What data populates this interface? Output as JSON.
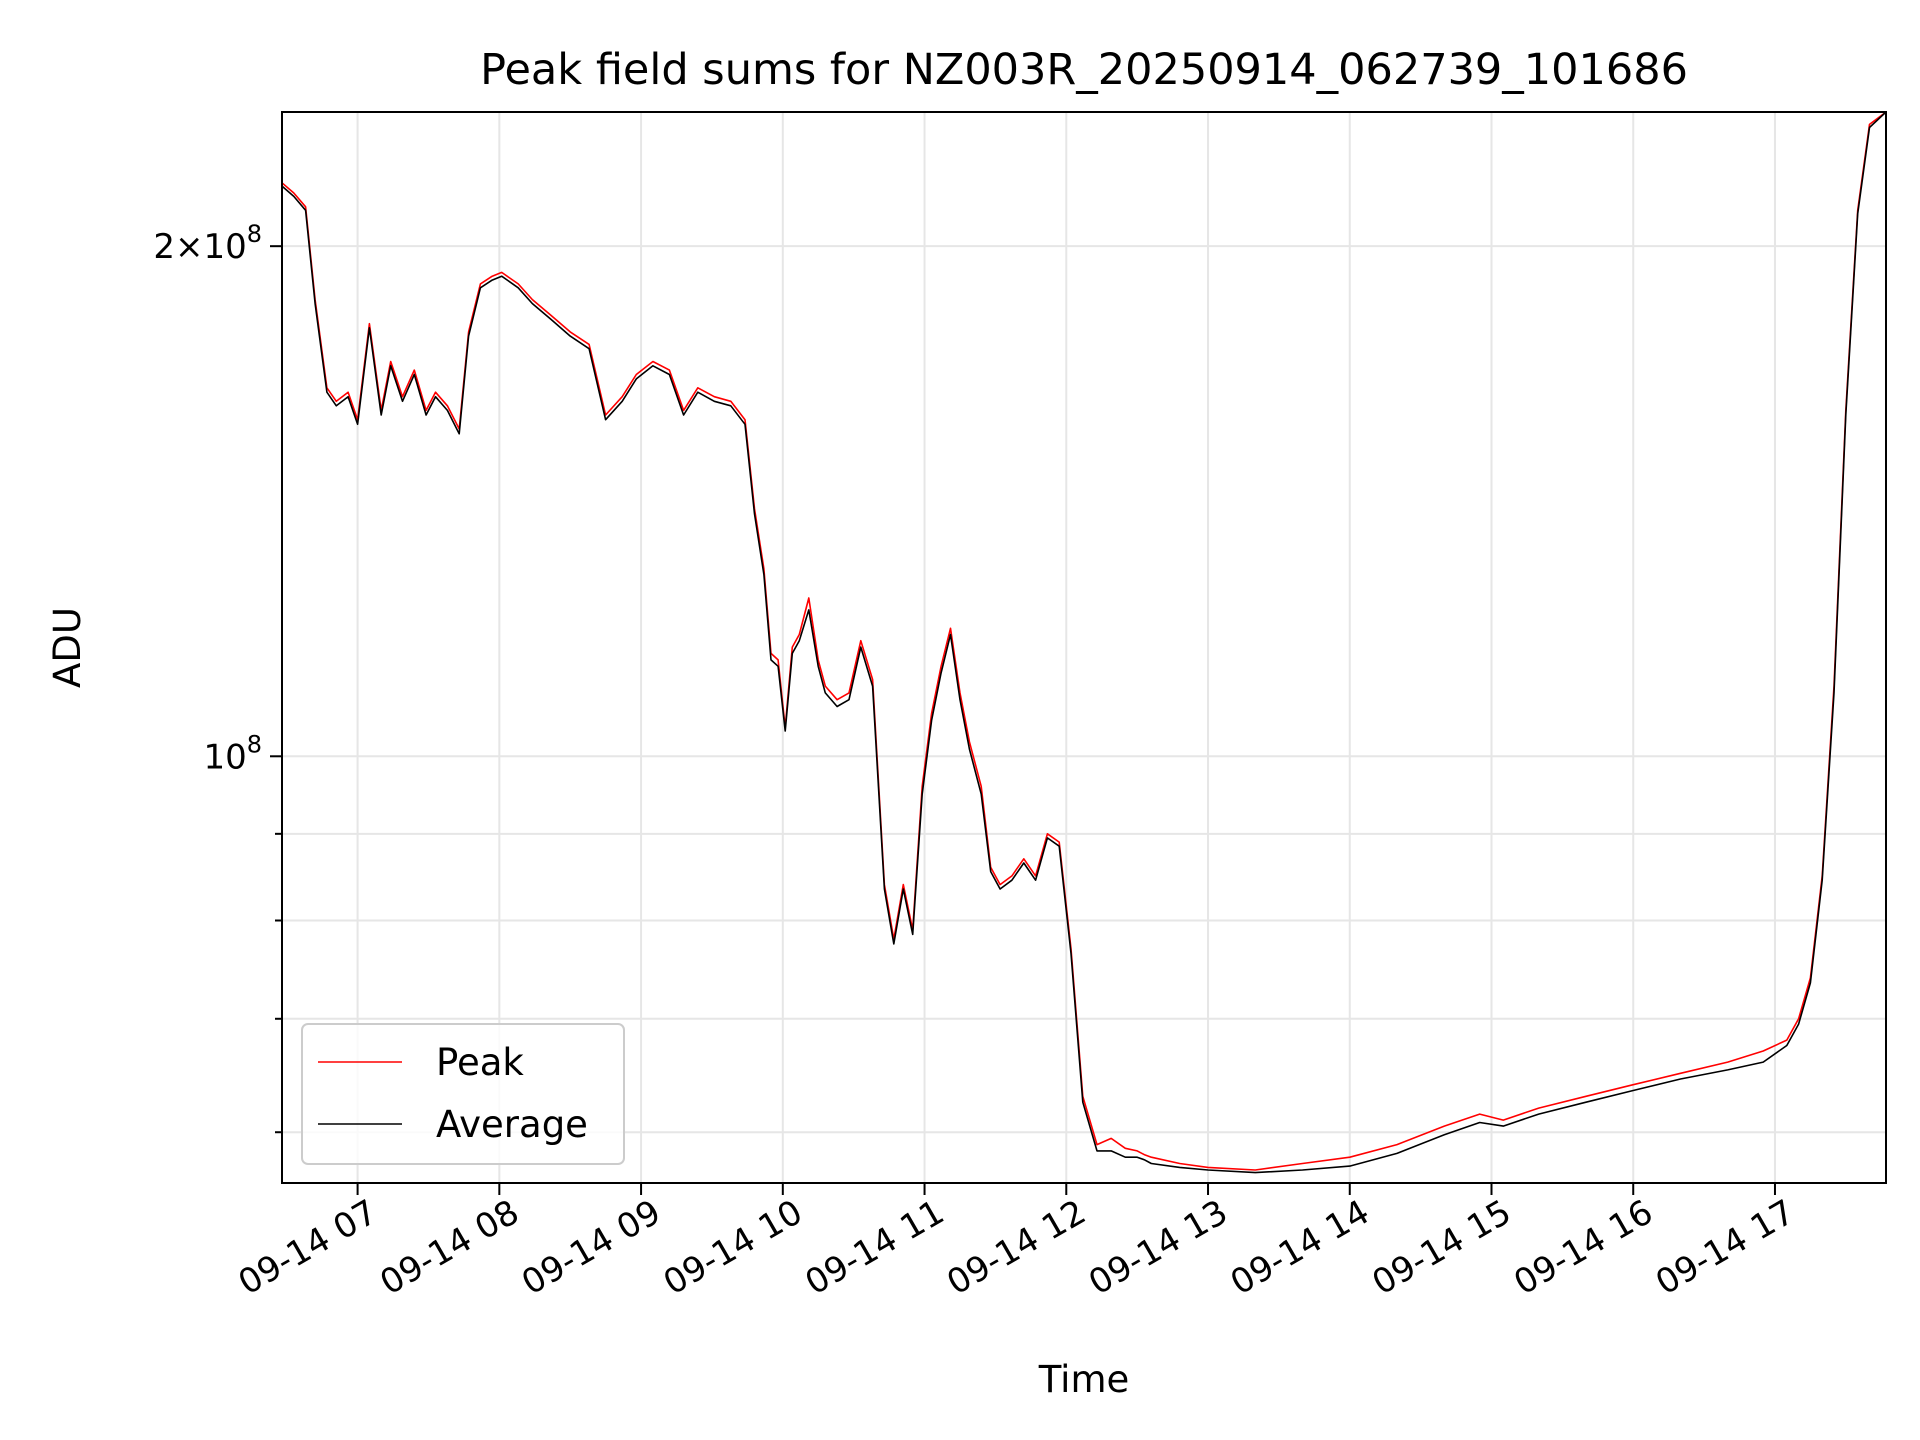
{
  "chart_data": {
    "type": "line",
    "title": "Peak field sums for NZ003R_20250914_062739_101686",
    "xlabel": "Time",
    "ylabel": "ADU",
    "y_scale": "log",
    "ylim": [
      56000000,
      240000000
    ],
    "xlim": [
      "2025-09-14 06:28",
      "2025-09-14 17:47"
    ],
    "x_tick_labels": [
      "09-14 07",
      "09-14 08",
      "09-14 09",
      "09-14 10",
      "09-14 11",
      "09-14 12",
      "09-14 13",
      "09-14 14",
      "09-14 15",
      "09-14 16",
      "09-14 17"
    ],
    "x_ticks": [
      "2025-09-14 07:00",
      "2025-09-14 08:00",
      "2025-09-14 09:00",
      "2025-09-14 10:00",
      "2025-09-14 11:00",
      "2025-09-14 12:00",
      "2025-09-14 13:00",
      "2025-09-14 14:00",
      "2025-09-14 15:00",
      "2025-09-14 16:00",
      "2025-09-14 17:00"
    ],
    "y_major_ticks": [
      {
        "value": 200000000,
        "mantissa": "2",
        "exponent": "8"
      },
      {
        "value": 100000000,
        "mantissa": "",
        "exponent": "8"
      }
    ],
    "y_minor_ticks": [
      60000000,
      70000000,
      80000000,
      90000000
    ],
    "grid": true,
    "legend_position": "lower-left",
    "series": [
      {
        "name": "Peak",
        "color": "#ff0000",
        "x": [
          "2025-09-14 06:28",
          "2025-09-14 06:33",
          "2025-09-14 06:38",
          "2025-09-14 06:42",
          "2025-09-14 06:47",
          "2025-09-14 06:51",
          "2025-09-14 06:56",
          "2025-09-14 07:00",
          "2025-09-14 07:05",
          "2025-09-14 07:10",
          "2025-09-14 07:14",
          "2025-09-14 07:19",
          "2025-09-14 07:24",
          "2025-09-14 07:29",
          "2025-09-14 07:33",
          "2025-09-14 07:38",
          "2025-09-14 07:43",
          "2025-09-14 07:47",
          "2025-09-14 07:52",
          "2025-09-14 07:57",
          "2025-09-14 08:01",
          "2025-09-14 08:08",
          "2025-09-14 08:14",
          "2025-09-14 08:22",
          "2025-09-14 08:30",
          "2025-09-14 08:38",
          "2025-09-14 08:45",
          "2025-09-14 08:52",
          "2025-09-14 08:58",
          "2025-09-14 09:05",
          "2025-09-14 09:12",
          "2025-09-14 09:18",
          "2025-09-14 09:24",
          "2025-09-14 09:31",
          "2025-09-14 09:38",
          "2025-09-14 09:44",
          "2025-09-14 09:48",
          "2025-09-14 09:52",
          "2025-09-14 09:55",
          "2025-09-14 09:58",
          "2025-09-14 10:01",
          "2025-09-14 10:04",
          "2025-09-14 10:07",
          "2025-09-14 10:11",
          "2025-09-14 10:15",
          "2025-09-14 10:18",
          "2025-09-14 10:23",
          "2025-09-14 10:28",
          "2025-09-14 10:33",
          "2025-09-14 10:38",
          "2025-09-14 10:43",
          "2025-09-14 10:47",
          "2025-09-14 10:51",
          "2025-09-14 10:55",
          "2025-09-14 10:59",
          "2025-09-14 11:03",
          "2025-09-14 11:07",
          "2025-09-14 11:11",
          "2025-09-14 11:15",
          "2025-09-14 11:19",
          "2025-09-14 11:24",
          "2025-09-14 11:28",
          "2025-09-14 11:32",
          "2025-09-14 11:37",
          "2025-09-14 11:42",
          "2025-09-14 11:47",
          "2025-09-14 11:52",
          "2025-09-14 11:57",
          "2025-09-14 12:02",
          "2025-09-14 12:07",
          "2025-09-14 12:13",
          "2025-09-14 12:19",
          "2025-09-14 12:25",
          "2025-09-14 12:30",
          "2025-09-14 12:33",
          "2025-09-14 12:36",
          "2025-09-14 12:48",
          "2025-09-14 13:00",
          "2025-09-14 13:20",
          "2025-09-14 13:40",
          "2025-09-14 14:00",
          "2025-09-14 14:20",
          "2025-09-14 14:40",
          "2025-09-14 14:55",
          "2025-09-14 15:05",
          "2025-09-14 15:20",
          "2025-09-14 15:40",
          "2025-09-14 16:00",
          "2025-09-14 16:20",
          "2025-09-14 16:40",
          "2025-09-14 16:55",
          "2025-09-14 17:05",
          "2025-09-14 17:10",
          "2025-09-14 17:15",
          "2025-09-14 17:20",
          "2025-09-14 17:25",
          "2025-09-14 17:30",
          "2025-09-14 17:35",
          "2025-09-14 17:40",
          "2025-09-14 17:47"
        ],
        "values": [
          218000000,
          215000000,
          211000000,
          186000000,
          165000000,
          162000000,
          164000000,
          158000000,
          180000000,
          160000000,
          171000000,
          163000000,
          169000000,
          160000000,
          164000000,
          161000000,
          156000000,
          178000000,
          190000000,
          192000000,
          193000000,
          190000000,
          186000000,
          182000000,
          178000000,
          175000000,
          159000000,
          163000000,
          168000000,
          171000000,
          169000000,
          160000000,
          165000000,
          163000000,
          162000000,
          158000000,
          140000000,
          129000000,
          115000000,
          114000000,
          104000000,
          116000000,
          118000000,
          124000000,
          114000000,
          110000000,
          108000000,
          109000000,
          117000000,
          111000000,
          84000000,
          78000000,
          84000000,
          79000000,
          96000000,
          106000000,
          113000000,
          119000000,
          109000000,
          102000000,
          96000000,
          86000000,
          84000000,
          85000000,
          87000000,
          85000000,
          90000000,
          89000000,
          77000000,
          63000000,
          59000000,
          59500000,
          58700000,
          58500000,
          58200000,
          58000000,
          57500000,
          57200000,
          57000000,
          57500000,
          58000000,
          59000000,
          60500000,
          61500000,
          61000000,
          62000000,
          63000000,
          64000000,
          65000000,
          66000000,
          67000000,
          68000000,
          70000000,
          74000000,
          85000000,
          110000000,
          160000000,
          210000000,
          236000000,
          240000000
        ]
      },
      {
        "name": "Average",
        "color": "#000000",
        "x": [
          "2025-09-14 06:28",
          "2025-09-14 06:33",
          "2025-09-14 06:38",
          "2025-09-14 06:42",
          "2025-09-14 06:47",
          "2025-09-14 06:51",
          "2025-09-14 06:56",
          "2025-09-14 07:00",
          "2025-09-14 07:05",
          "2025-09-14 07:10",
          "2025-09-14 07:14",
          "2025-09-14 07:19",
          "2025-09-14 07:24",
          "2025-09-14 07:29",
          "2025-09-14 07:33",
          "2025-09-14 07:38",
          "2025-09-14 07:43",
          "2025-09-14 07:47",
          "2025-09-14 07:52",
          "2025-09-14 07:57",
          "2025-09-14 08:01",
          "2025-09-14 08:08",
          "2025-09-14 08:14",
          "2025-09-14 08:22",
          "2025-09-14 08:30",
          "2025-09-14 08:38",
          "2025-09-14 08:45",
          "2025-09-14 08:52",
          "2025-09-14 08:58",
          "2025-09-14 09:05",
          "2025-09-14 09:12",
          "2025-09-14 09:18",
          "2025-09-14 09:24",
          "2025-09-14 09:31",
          "2025-09-14 09:38",
          "2025-09-14 09:44",
          "2025-09-14 09:48",
          "2025-09-14 09:52",
          "2025-09-14 09:55",
          "2025-09-14 09:58",
          "2025-09-14 10:01",
          "2025-09-14 10:04",
          "2025-09-14 10:07",
          "2025-09-14 10:11",
          "2025-09-14 10:15",
          "2025-09-14 10:18",
          "2025-09-14 10:23",
          "2025-09-14 10:28",
          "2025-09-14 10:33",
          "2025-09-14 10:38",
          "2025-09-14 10:43",
          "2025-09-14 10:47",
          "2025-09-14 10:51",
          "2025-09-14 10:55",
          "2025-09-14 10:59",
          "2025-09-14 11:03",
          "2025-09-14 11:07",
          "2025-09-14 11:11",
          "2025-09-14 11:15",
          "2025-09-14 11:19",
          "2025-09-14 11:24",
          "2025-09-14 11:28",
          "2025-09-14 11:32",
          "2025-09-14 11:37",
          "2025-09-14 11:42",
          "2025-09-14 11:47",
          "2025-09-14 11:52",
          "2025-09-14 11:57",
          "2025-09-14 12:02",
          "2025-09-14 12:07",
          "2025-09-14 12:13",
          "2025-09-14 12:19",
          "2025-09-14 12:25",
          "2025-09-14 12:30",
          "2025-09-14 12:33",
          "2025-09-14 12:36",
          "2025-09-14 12:48",
          "2025-09-14 13:00",
          "2025-09-14 13:20",
          "2025-09-14 13:40",
          "2025-09-14 14:00",
          "2025-09-14 14:20",
          "2025-09-14 14:40",
          "2025-09-14 14:55",
          "2025-09-14 15:05",
          "2025-09-14 15:20",
          "2025-09-14 15:40",
          "2025-09-14 16:00",
          "2025-09-14 16:20",
          "2025-09-14 16:40",
          "2025-09-14 16:55",
          "2025-09-14 17:05",
          "2025-09-14 17:10",
          "2025-09-14 17:15",
          "2025-09-14 17:20",
          "2025-09-14 17:25",
          "2025-09-14 17:30",
          "2025-09-14 17:35",
          "2025-09-14 17:40",
          "2025-09-14 17:47"
        ],
        "values": [
          217000000,
          214000000,
          210000000,
          185000000,
          164000000,
          161000000,
          163000000,
          157000000,
          179000000,
          159000000,
          170000000,
          162000000,
          168000000,
          159000000,
          163000000,
          160000000,
          155000000,
          177000000,
          189000000,
          191000000,
          192000000,
          189000000,
          185000000,
          181000000,
          177000000,
          174000000,
          158000000,
          162000000,
          167000000,
          170000000,
          168000000,
          159000000,
          164000000,
          162000000,
          161000000,
          157000000,
          139000000,
          128000000,
          114000000,
          113000000,
          103500000,
          115000000,
          117000000,
          122000000,
          113000000,
          109000000,
          107000000,
          108000000,
          116000000,
          110000000,
          83500000,
          77500000,
          83500000,
          78500000,
          95000000,
          105000000,
          112000000,
          118000000,
          108000000,
          101000000,
          95000000,
          85500000,
          83500000,
          84500000,
          86500000,
          84500000,
          89500000,
          88500000,
          76500000,
          62500000,
          58500000,
          58500000,
          58000000,
          58000000,
          57800000,
          57500000,
          57200000,
          57000000,
          56800000,
          57000000,
          57300000,
          58300000,
          59800000,
          60800000,
          60500000,
          61500000,
          62500000,
          63500000,
          64500000,
          65300000,
          66000000,
          67500000,
          69500000,
          73500000,
          84500000,
          109000000,
          159000000,
          209000000,
          235000000,
          240000000
        ]
      }
    ]
  }
}
